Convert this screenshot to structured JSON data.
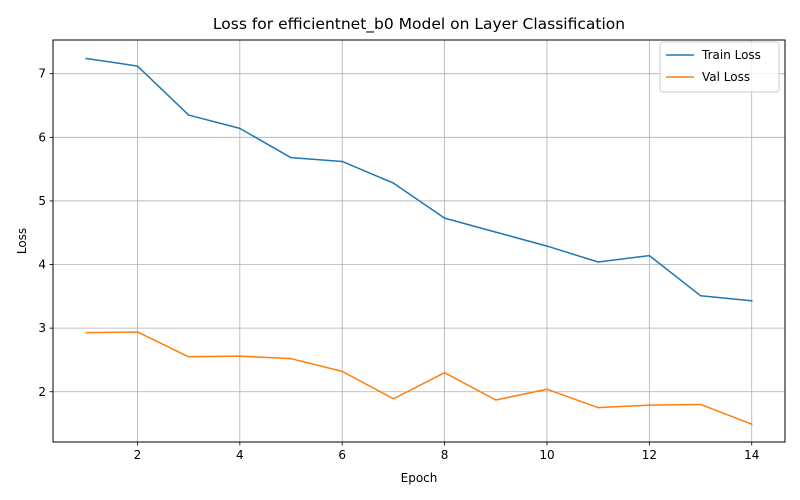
{
  "chart_data": {
    "type": "line",
    "title": "Loss for efficientnet_b0 Model on Layer Classification",
    "xlabel": "Epoch",
    "ylabel": "Loss",
    "x": [
      1,
      2,
      3,
      4,
      5,
      6,
      7,
      8,
      9,
      10,
      11,
      12,
      13,
      14
    ],
    "xlim": [
      0.35,
      14.65
    ],
    "ylim": [
      1.21,
      7.53
    ],
    "xticks": [
      2,
      4,
      6,
      8,
      10,
      12,
      14
    ],
    "yticks": [
      2,
      3,
      4,
      5,
      6,
      7
    ],
    "grid": true,
    "legend_position": "top-right",
    "series": [
      {
        "name": "Train Loss",
        "color": "#1f77b4",
        "values": [
          7.24,
          7.12,
          6.35,
          6.14,
          5.68,
          5.62,
          5.28,
          4.73,
          4.51,
          4.29,
          4.04,
          4.14,
          3.51,
          3.43
        ]
      },
      {
        "name": "Val Loss",
        "color": "#ff7f0e",
        "values": [
          2.93,
          2.94,
          2.55,
          2.56,
          2.52,
          2.32,
          1.89,
          2.3,
          1.87,
          2.04,
          1.75,
          1.79,
          1.8,
          1.49
        ]
      }
    ]
  }
}
